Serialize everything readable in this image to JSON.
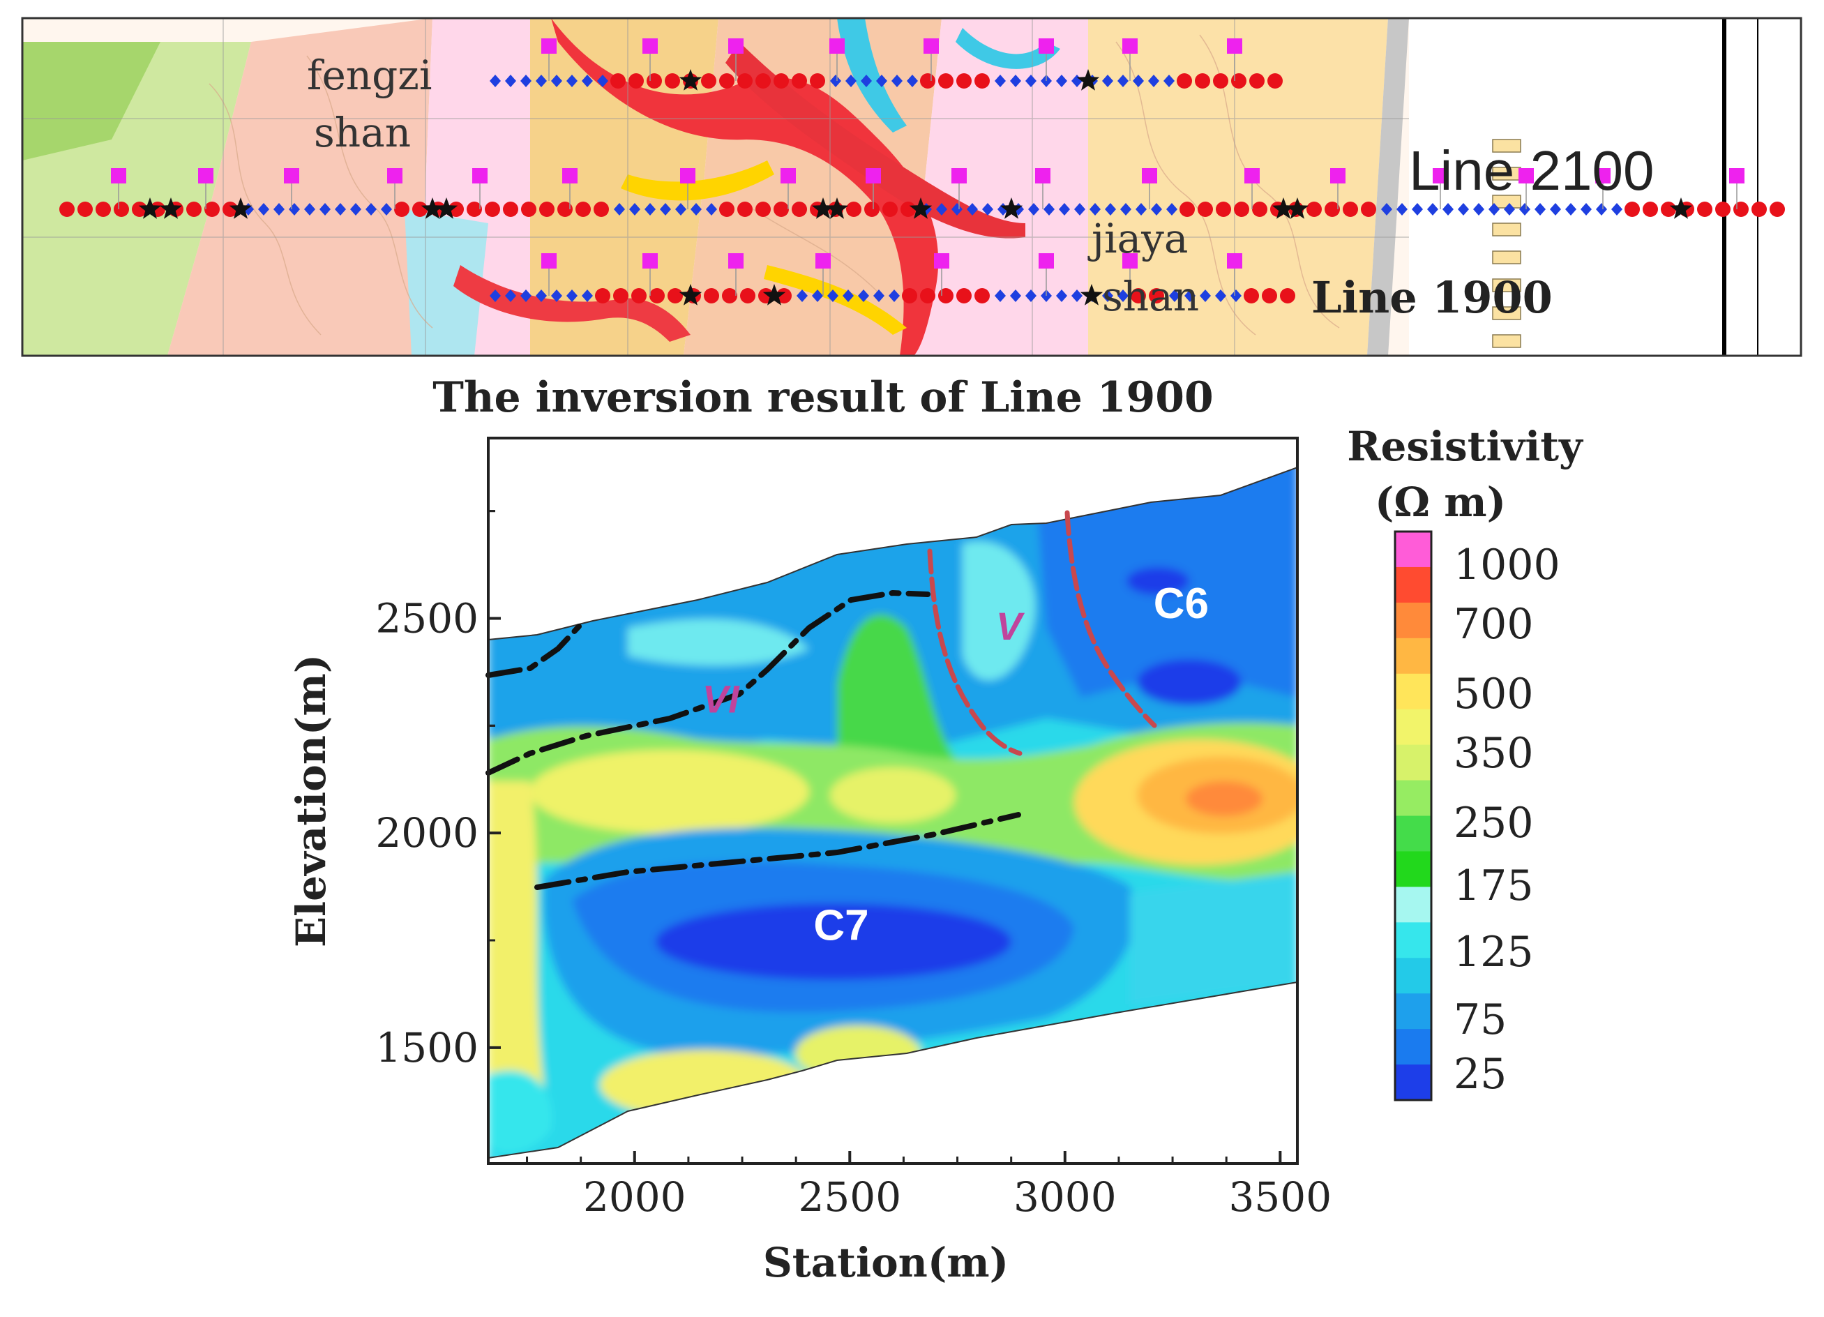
{
  "map": {
    "place_1": [
      "fengzi",
      "shan"
    ],
    "place_2": [
      "jiaya",
      "shan"
    ],
    "line_upper_label": "Line 2100",
    "line_lower_label": "Line 1900",
    "colors": {
      "electrode": "#e8111a",
      "receiver": "#1e3fe0",
      "marker": "#ee22ee",
      "star": "#111111"
    }
  },
  "chart_data": {
    "type": "heatmap",
    "title": "The inversion result of Line 1900",
    "xlabel": "Station(m)",
    "ylabel": "Elevation(m)",
    "xlim": [
      1660,
      3540
    ],
    "ylim": [
      1230,
      2920
    ],
    "xticks": [
      2000,
      2500,
      3000,
      3500
    ],
    "yticks": [
      1500,
      2000,
      2500
    ],
    "colorbar": {
      "title": [
        "Resistivity",
        "(Ω m)"
      ],
      "levels": [
        "1000",
        "700",
        "500",
        "350",
        "250",
        "175",
        "125",
        "75",
        "25"
      ],
      "colors": [
        "#ff5cd8",
        "#ff4b30",
        "#ff8a3a",
        "#ffb743",
        "#ffe55a",
        "#f2f46a",
        "#d7f26a",
        "#96ec62",
        "#44dc4a",
        "#22d81c",
        "#a6f7f0",
        "#36e6ec",
        "#23cae8",
        "#1ea0ec",
        "#1a7bef",
        "#1d3ee9"
      ]
    },
    "labels": [
      {
        "text": "C7",
        "x": 2480,
        "y": 1780
      },
      {
        "text": "C6",
        "x": 3270,
        "y": 2530
      },
      {
        "text": "V",
        "x": 2870,
        "y": 2480
      },
      {
        "text": "VI",
        "x": 2200,
        "y": 2310
      }
    ]
  }
}
